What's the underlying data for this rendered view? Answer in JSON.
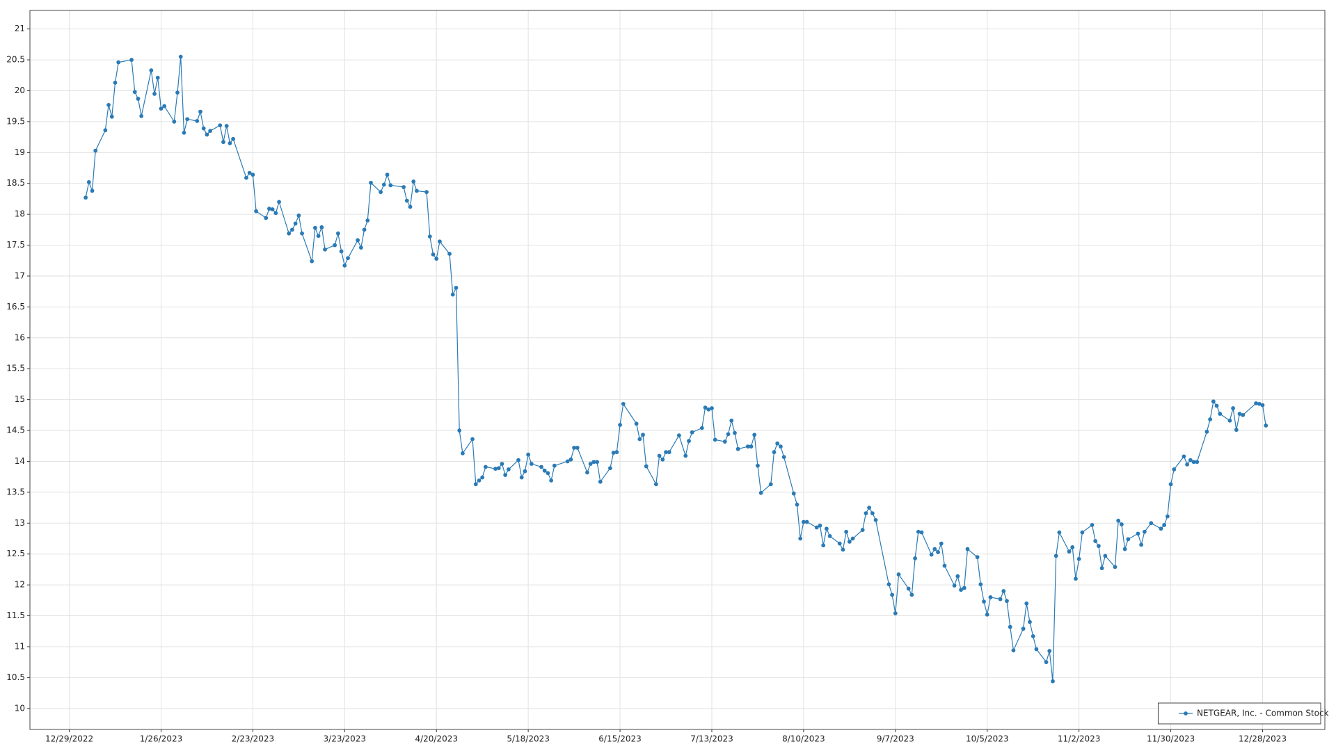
{
  "chart_data": {
    "type": "line",
    "x": [
      "1/3/2023",
      "1/4/2023",
      "1/5/2023",
      "1/6/2023",
      "1/9/2023",
      "1/10/2023",
      "1/11/2023",
      "1/12/2023",
      "1/13/2023",
      "1/17/2023",
      "1/18/2023",
      "1/19/2023",
      "1/20/2023",
      "1/23/2023",
      "1/24/2023",
      "1/25/2023",
      "1/26/2023",
      "1/27/2023",
      "1/30/2023",
      "1/31/2023",
      "2/1/2023",
      "2/2/2023",
      "2/3/2023",
      "2/6/2023",
      "2/7/2023",
      "2/8/2023",
      "2/9/2023",
      "2/10/2023",
      "2/13/2023",
      "2/14/2023",
      "2/15/2023",
      "2/16/2023",
      "2/17/2023",
      "2/21/2023",
      "2/22/2023",
      "2/23/2023",
      "2/24/2023",
      "2/27/2023",
      "2/28/2023",
      "3/1/2023",
      "3/2/2023",
      "3/3/2023",
      "3/6/2023",
      "3/7/2023",
      "3/8/2023",
      "3/9/2023",
      "3/10/2023",
      "3/13/2023",
      "3/14/2023",
      "3/15/2023",
      "3/16/2023",
      "3/17/2023",
      "3/20/2023",
      "3/21/2023",
      "3/22/2023",
      "3/23/2023",
      "3/24/2023",
      "3/27/2023",
      "3/28/2023",
      "3/29/2023",
      "3/30/2023",
      "3/31/2023",
      "4/3/2023",
      "4/4/2023",
      "4/5/2023",
      "4/6/2023",
      "4/10/2023",
      "4/11/2023",
      "4/12/2023",
      "4/13/2023",
      "4/14/2023",
      "4/17/2023",
      "4/18/2023",
      "4/19/2023",
      "4/20/2023",
      "4/21/2023",
      "4/24/2023",
      "4/25/2023",
      "4/26/2023",
      "4/27/2023",
      "4/28/2023",
      "5/1/2023",
      "5/2/2023",
      "5/3/2023",
      "5/4/2023",
      "5/5/2023",
      "5/8/2023",
      "5/9/2023",
      "5/10/2023",
      "5/11/2023",
      "5/12/2023",
      "5/15/2023",
      "5/16/2023",
      "5/17/2023",
      "5/18/2023",
      "5/19/2023",
      "5/22/2023",
      "5/23/2023",
      "5/24/2023",
      "5/25/2023",
      "5/26/2023",
      "5/30/2023",
      "5/31/2023",
      "6/1/2023",
      "6/2/2023",
      "6/5/2023",
      "6/6/2023",
      "6/7/2023",
      "6/8/2023",
      "6/9/2023",
      "6/12/2023",
      "6/13/2023",
      "6/14/2023",
      "6/15/2023",
      "6/16/2023",
      "6/20/2023",
      "6/21/2023",
      "6/22/2023",
      "6/23/2023",
      "6/26/2023",
      "6/27/2023",
      "6/28/2023",
      "6/29/2023",
      "6/30/2023",
      "7/3/2023",
      "7/5/2023",
      "7/6/2023",
      "7/7/2023",
      "7/10/2023",
      "7/11/2023",
      "7/12/2023",
      "7/13/2023",
      "7/14/2023",
      "7/17/2023",
      "7/18/2023",
      "7/19/2023",
      "7/20/2023",
      "7/21/2023",
      "7/24/2023",
      "7/25/2023",
      "7/26/2023",
      "7/27/2023",
      "7/28/2023",
      "7/31/2023",
      "8/1/2023",
      "8/2/2023",
      "8/3/2023",
      "8/4/2023",
      "8/7/2023",
      "8/8/2023",
      "8/9/2023",
      "8/10/2023",
      "8/11/2023",
      "8/14/2023",
      "8/15/2023",
      "8/16/2023",
      "8/17/2023",
      "8/18/2023",
      "8/21/2023",
      "8/22/2023",
      "8/23/2023",
      "8/24/2023",
      "8/25/2023",
      "8/28/2023",
      "8/29/2023",
      "8/30/2023",
      "8/31/2023",
      "9/1/2023",
      "9/5/2023",
      "9/6/2023",
      "9/7/2023",
      "9/8/2023",
      "9/11/2023",
      "9/12/2023",
      "9/13/2023",
      "9/14/2023",
      "9/15/2023",
      "9/18/2023",
      "9/19/2023",
      "9/20/2023",
      "9/21/2023",
      "9/22/2023",
      "9/25/2023",
      "9/26/2023",
      "9/27/2023",
      "9/28/2023",
      "9/29/2023",
      "10/2/2023",
      "10/3/2023",
      "10/4/2023",
      "10/5/2023",
      "10/6/2023",
      "10/9/2023",
      "10/10/2023",
      "10/11/2023",
      "10/12/2023",
      "10/13/2023",
      "10/16/2023",
      "10/17/2023",
      "10/18/2023",
      "10/19/2023",
      "10/20/2023",
      "10/23/2023",
      "10/24/2023",
      "10/25/2023",
      "10/26/2023",
      "10/27/2023",
      "10/30/2023",
      "10/31/2023",
      "11/1/2023",
      "11/2/2023",
      "11/3/2023",
      "11/6/2023",
      "11/7/2023",
      "11/8/2023",
      "11/9/2023",
      "11/10/2023",
      "11/13/2023",
      "11/14/2023",
      "11/15/2023",
      "11/16/2023",
      "11/17/2023",
      "11/20/2023",
      "11/21/2023",
      "11/22/2023",
      "11/24/2023",
      "11/27/2023",
      "11/28/2023",
      "11/29/2023",
      "11/30/2023",
      "12/1/2023",
      "12/4/2023",
      "12/5/2023",
      "12/6/2023",
      "12/7/2023",
      "12/8/2023",
      "12/11/2023",
      "12/12/2023",
      "12/13/2023",
      "12/14/2023",
      "12/15/2023",
      "12/18/2023",
      "12/19/2023",
      "12/20/2023",
      "12/21/2023",
      "12/22/2023",
      "12/26/2023",
      "12/27/2023",
      "12/28/2023",
      "12/29/2023"
    ],
    "series": [
      {
        "name": "NETGEAR, Inc. - Common Stock",
        "color": "#2a7ab5",
        "values": [
          18.27,
          18.52,
          18.38,
          19.03,
          19.36,
          19.77,
          19.58,
          20.13,
          20.46,
          20.5,
          19.98,
          19.87,
          19.59,
          20.33,
          19.95,
          20.21,
          19.71,
          19.75,
          19.5,
          19.97,
          20.55,
          19.32,
          19.54,
          19.51,
          19.66,
          19.39,
          19.29,
          19.35,
          19.44,
          19.17,
          19.43,
          19.15,
          19.22,
          18.59,
          18.67,
          18.64,
          18.05,
          17.94,
          18.09,
          18.08,
          18.02,
          18.2,
          17.69,
          17.75,
          17.85,
          17.98,
          17.69,
          17.24,
          17.78,
          17.65,
          17.79,
          17.43,
          17.5,
          17.69,
          17.4,
          17.17,
          17.29,
          17.58,
          17.46,
          17.75,
          17.9,
          18.51,
          18.36,
          18.48,
          18.64,
          18.47,
          18.44,
          18.22,
          18.12,
          18.53,
          18.38,
          18.36,
          17.64,
          17.35,
          17.28,
          17.56,
          17.36,
          16.7,
          16.81,
          14.5,
          14.13,
          14.36,
          13.63,
          13.69,
          13.74,
          13.91,
          13.88,
          13.89,
          13.96,
          13.78,
          13.87,
          14.02,
          13.74,
          13.84,
          14.11,
          13.96,
          13.91,
          13.85,
          13.81,
          13.69,
          13.93,
          14.0,
          14.03,
          14.22,
          14.22,
          13.82,
          13.96,
          13.99,
          13.99,
          13.67,
          13.89,
          14.14,
          14.15,
          14.59,
          14.93,
          14.61,
          14.36,
          14.43,
          13.92,
          13.63,
          14.09,
          14.03,
          14.15,
          14.15,
          14.42,
          14.09,
          14.33,
          14.47,
          14.54,
          14.87,
          14.84,
          14.86,
          14.35,
          14.32,
          14.44,
          14.66,
          14.46,
          14.2,
          14.24,
          14.24,
          14.43,
          13.93,
          13.49,
          13.63,
          14.15,
          14.29,
          14.24,
          14.07,
          13.48,
          13.3,
          12.75,
          13.02,
          13.02,
          12.93,
          12.96,
          12.64,
          12.91,
          12.79,
          12.67,
          12.57,
          12.86,
          12.7,
          12.75,
          12.89,
          13.16,
          13.25,
          13.16,
          13.05,
          12.01,
          11.84,
          11.54,
          12.17,
          11.94,
          11.84,
          12.43,
          12.86,
          12.85,
          12.49,
          12.58,
          12.53,
          12.67,
          12.31,
          11.99,
          12.14,
          11.92,
          11.95,
          12.58,
          12.45,
          12.01,
          11.73,
          11.52,
          11.8,
          11.77,
          11.9,
          11.74,
          11.32,
          10.94,
          11.29,
          11.7,
          11.4,
          11.17,
          10.96,
          10.75,
          10.93,
          10.44,
          12.47,
          12.85,
          12.54,
          12.61,
          12.1,
          12.42,
          12.85,
          12.97,
          12.71,
          12.63,
          12.27,
          12.47,
          12.29,
          13.04,
          12.98,
          12.58,
          12.74,
          12.83,
          12.65,
          12.86,
          13.0,
          12.91,
          12.97,
          13.11,
          13.63,
          13.87,
          14.08,
          13.95,
          14.02,
          13.99,
          13.99,
          14.48,
          14.68,
          14.97,
          14.9,
          14.77,
          14.66,
          14.86,
          14.51,
          14.77,
          14.75,
          14.94,
          14.93,
          14.91,
          14.58
        ]
      }
    ],
    "xlim": [
      "12/17/2022",
      "1/16/2024"
    ],
    "xticks": [
      "12/29/2022",
      "1/26/2023",
      "2/23/2023",
      "3/23/2023",
      "4/20/2023",
      "5/18/2023",
      "6/15/2023",
      "7/13/2023",
      "8/10/2023",
      "9/7/2023",
      "10/5/2023",
      "11/2/2023",
      "11/30/2023",
      "12/28/2023"
    ],
    "ylim": [
      9.66,
      21.3
    ],
    "yticks": [
      10,
      10.5,
      11,
      11.5,
      12,
      12.5,
      13,
      13.5,
      14,
      14.5,
      15,
      15.5,
      16,
      16.5,
      17,
      17.5,
      18,
      18.5,
      19,
      19.5,
      20,
      20.5,
      21
    ],
    "grid": true,
    "legend": "bottom-right"
  }
}
